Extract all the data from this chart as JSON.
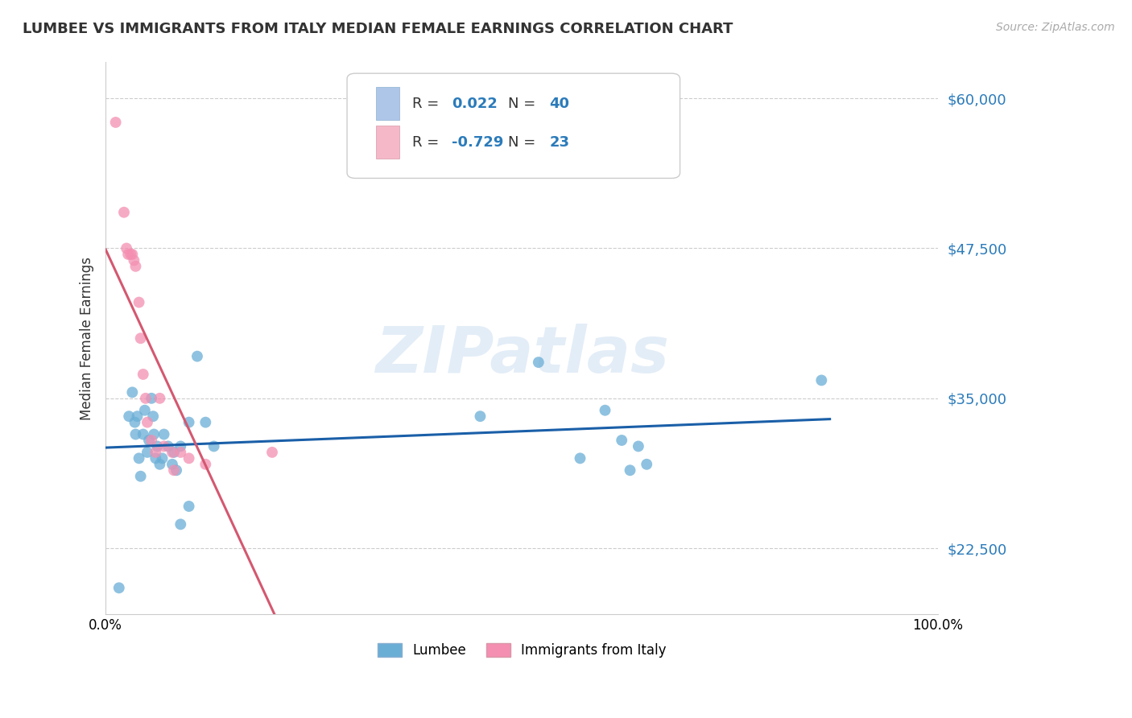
{
  "title": "LUMBEE VS IMMIGRANTS FROM ITALY MEDIAN FEMALE EARNINGS CORRELATION CHART",
  "source": "Source: ZipAtlas.com",
  "ylabel": "Median Female Earnings",
  "yticks": [
    22500,
    35000,
    47500,
    60000
  ],
  "ytick_labels": [
    "$22,500",
    "$35,000",
    "$47,500",
    "$60,000"
  ],
  "xlim": [
    0.0,
    1.0
  ],
  "ylim": [
    17000,
    63000
  ],
  "lumbee_color": "#6aaed6",
  "italy_color": "#f48fb1",
  "lumbee_trend_color": "#1a5fa8",
  "italy_trend_color": "#d45870",
  "watermark": "ZIPatlas",
  "lumbee_points": [
    [
      0.016,
      19200
    ],
    [
      0.028,
      33500
    ],
    [
      0.032,
      35500
    ],
    [
      0.035,
      33000
    ],
    [
      0.036,
      32000
    ],
    [
      0.038,
      33500
    ],
    [
      0.04,
      30000
    ],
    [
      0.042,
      28500
    ],
    [
      0.045,
      32000
    ],
    [
      0.047,
      34000
    ],
    [
      0.05,
      30500
    ],
    [
      0.052,
      31500
    ],
    [
      0.055,
      35000
    ],
    [
      0.057,
      33500
    ],
    [
      0.058,
      32000
    ],
    [
      0.06,
      30000
    ],
    [
      0.062,
      31000
    ],
    [
      0.065,
      29500
    ],
    [
      0.068,
      30000
    ],
    [
      0.07,
      32000
    ],
    [
      0.075,
      31000
    ],
    [
      0.08,
      29500
    ],
    [
      0.082,
      30500
    ],
    [
      0.085,
      29000
    ],
    [
      0.09,
      31000
    ],
    [
      0.1,
      26000
    ],
    [
      0.1,
      33000
    ],
    [
      0.11,
      38500
    ],
    [
      0.12,
      33000
    ],
    [
      0.13,
      31000
    ],
    [
      0.45,
      33500
    ],
    [
      0.52,
      38000
    ],
    [
      0.57,
      30000
    ],
    [
      0.6,
      34000
    ],
    [
      0.62,
      31500
    ],
    [
      0.63,
      29000
    ],
    [
      0.64,
      31000
    ],
    [
      0.65,
      29500
    ],
    [
      0.86,
      36500
    ],
    [
      0.09,
      24500
    ]
  ],
  "italy_points": [
    [
      0.012,
      58000
    ],
    [
      0.022,
      50500
    ],
    [
      0.025,
      47500
    ],
    [
      0.027,
      47000
    ],
    [
      0.03,
      47000
    ],
    [
      0.032,
      47000
    ],
    [
      0.034,
      46500
    ],
    [
      0.036,
      46000
    ],
    [
      0.04,
      43000
    ],
    [
      0.042,
      40000
    ],
    [
      0.045,
      37000
    ],
    [
      0.048,
      35000
    ],
    [
      0.05,
      33000
    ],
    [
      0.055,
      31500
    ],
    [
      0.06,
      30500
    ],
    [
      0.065,
      35000
    ],
    [
      0.07,
      31000
    ],
    [
      0.08,
      30500
    ],
    [
      0.082,
      29000
    ],
    [
      0.09,
      30500
    ],
    [
      0.1,
      30000
    ],
    [
      0.12,
      29500
    ],
    [
      0.2,
      30500
    ]
  ],
  "lumbee_trend_intercept": 33200,
  "lumbee_trend_slope": 500,
  "italy_trend_intercept": 49500,
  "italy_trend_slope": -130000
}
